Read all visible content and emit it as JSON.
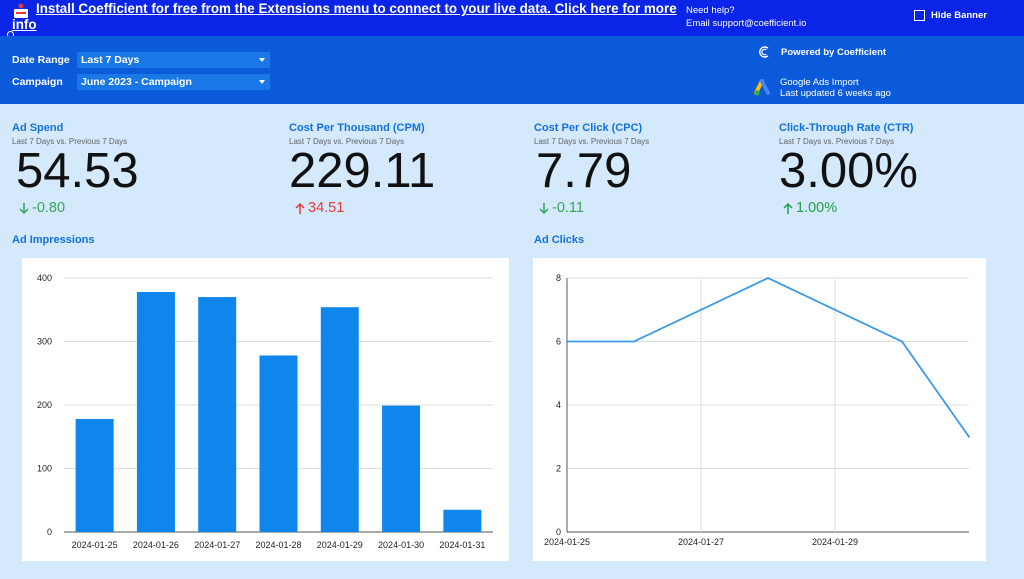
{
  "banner": {
    "install_text": "Install Coefficient for free from the Extensions menu to connect to your live data. Click here for more info",
    "help_line1": "Need help?",
    "help_line2": "Email support@coefficient.io",
    "hide_label": "Hide Banner"
  },
  "filters": {
    "date_range_label": "Date Range",
    "date_range_value": "Last 7 Days",
    "campaign_label": "Campaign",
    "campaign_value": "June 2023 - Campaign"
  },
  "branding": {
    "powered_by": "Powered by Coefficient",
    "import_name": "Google Ads Import",
    "last_updated": "Last updated 6 weeks ago"
  },
  "kpis": [
    {
      "title": "Ad Spend",
      "subtitle": "Last 7 Days vs. Previous 7 Days",
      "value": "54.53",
      "delta": "-0.80",
      "direction": "down",
      "color": "#3aa35b"
    },
    {
      "title": "Cost Per Thousand (CPM)",
      "subtitle": "Last 7 Days vs. Previous 7 Days",
      "value": "229.11",
      "delta": "34.51",
      "direction": "up",
      "color": "#e53935"
    },
    {
      "title": "Cost Per Click (CPC)",
      "subtitle": "Last 7 Days vs. Previous 7 Days",
      "value": "7.79",
      "delta": "-0.11",
      "direction": "down",
      "color": "#3aa35b"
    },
    {
      "title": "Click-Through Rate (CTR)",
      "subtitle": "Last 7 Days vs. Previous 7 Days",
      "value": "3.00%",
      "delta": "1.00%",
      "direction": "up",
      "color": "#1e9e48"
    }
  ],
  "chart_data": [
    {
      "type": "bar",
      "title": "Ad Impressions",
      "categories": [
        "2024-01-25",
        "2024-01-26",
        "2024-01-27",
        "2024-01-28",
        "2024-01-29",
        "2024-01-30",
        "2024-01-31"
      ],
      "values": [
        178,
        378,
        370,
        278,
        354,
        199,
        35
      ],
      "ylim": [
        0,
        400
      ],
      "yticks": [
        0,
        100,
        200,
        300,
        400
      ],
      "grid": true,
      "color": "#0f86ec"
    },
    {
      "type": "line",
      "title": "Ad Clicks",
      "x": [
        "2024-01-25",
        "2024-01-26",
        "2024-01-27",
        "2024-01-28",
        "2024-01-29",
        "2024-01-30",
        "2024-01-31"
      ],
      "values": [
        6,
        6,
        7,
        8,
        7,
        6,
        3
      ],
      "xticks": [
        "2024-01-25",
        "2024-01-27",
        "2024-01-29"
      ],
      "ylim": [
        0,
        8
      ],
      "yticks": [
        0,
        2,
        4,
        6,
        8
      ],
      "grid": true,
      "color": "#3d9be9"
    }
  ]
}
